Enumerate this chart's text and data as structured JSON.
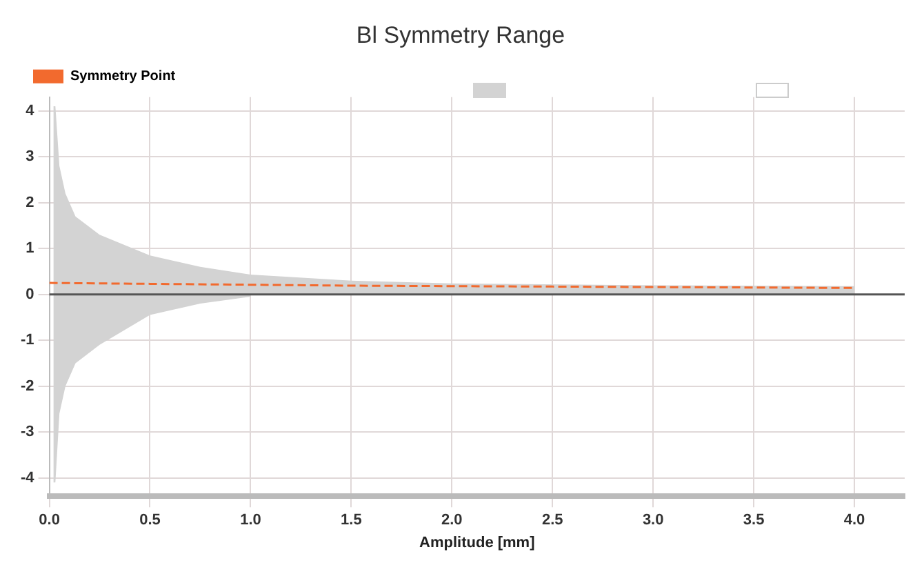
{
  "chart_data": {
    "type": "line",
    "title": "Bl Symmetry Range",
    "xlabel": "Amplitude [mm]",
    "xlim": [
      0,
      4.25
    ],
    "ylim": [
      -4.4,
      4.3
    ],
    "xticks": [
      {
        "value": 0,
        "label": "0.0"
      },
      {
        "value": 0.5,
        "label": "0.5"
      },
      {
        "value": 1,
        "label": "1.0"
      },
      {
        "value": 1.5,
        "label": "1.5"
      },
      {
        "value": 2,
        "label": "2.0"
      },
      {
        "value": 2.5,
        "label": "2.5"
      },
      {
        "value": 3,
        "label": "3.0"
      },
      {
        "value": 3.5,
        "label": "3.5"
      },
      {
        "value": 4,
        "label": "4.0"
      }
    ],
    "yticks": [
      -4,
      -3,
      -2,
      -1,
      0,
      1,
      2,
      3,
      4
    ],
    "grid": true,
    "legend": "top",
    "marker": "none",
    "ref_lines": [
      {
        "axis": "y",
        "value": 0,
        "color": "#555555"
      }
    ],
    "series": [
      {
        "name": "Symmetry Point",
        "color": "#f26a2e",
        "line_style": "dashed",
        "x": [
          0,
          0.5,
          1,
          1.5,
          2,
          2.5,
          3,
          3.5,
          4
        ],
        "values": [
          0.25,
          0.23,
          0.21,
          0.19,
          0.18,
          0.17,
          0.16,
          0.15,
          0.14
        ]
      },
      {
        "type": "area",
        "color": "#d3d3d3",
        "x": [
          0.02,
          0.03,
          0.05,
          0.08,
          0.13,
          0.25,
          0.5,
          0.75,
          1,
          1.5,
          2,
          3,
          4
        ],
        "values": [
          4.1,
          4.1,
          2.8,
          2.2,
          1.7,
          1.3,
          0.85,
          0.6,
          0.43,
          0.3,
          0.24,
          0.2,
          0.18
        ]
      },
      {
        "type": "area",
        "color": "#d3d3d3",
        "x": [
          0.02,
          0.03,
          0.05,
          0.08,
          0.13,
          0.25,
          0.5,
          0.75,
          1
        ],
        "values": [
          -4.1,
          -4.1,
          -2.6,
          -2.0,
          -1.5,
          -1.1,
          -0.45,
          -0.2,
          -0.05
        ]
      }
    ]
  }
}
